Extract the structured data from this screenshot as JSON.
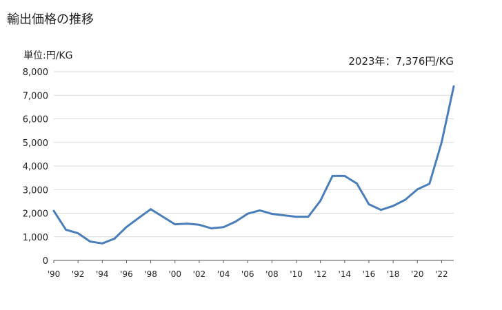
{
  "title": "輸出価格の推移",
  "unit_label": "単位:円/KG",
  "annotation": "2023年：7,376円/KG",
  "colors": {
    "line": "#4a7ebb",
    "grid": "#d9d9d9",
    "axis": "#555555"
  },
  "chart_data": {
    "type": "line",
    "title": "輸出価格の推移",
    "xlabel": "",
    "ylabel": "単位:円/KG",
    "ylim": [
      0,
      8000
    ],
    "yticks": [
      0,
      1000,
      2000,
      3000,
      4000,
      5000,
      6000,
      7000,
      8000
    ],
    "ytick_labels": [
      "0",
      "1,000",
      "2,000",
      "3,000",
      "4,000",
      "5,000",
      "6,000",
      "7,000",
      "8,000"
    ],
    "xticks": [
      1990,
      1992,
      1994,
      1996,
      1998,
      2000,
      2002,
      2004,
      2006,
      2008,
      2010,
      2012,
      2014,
      2016,
      2018,
      2020,
      2022
    ],
    "xtick_labels": [
      "'90",
      "'92",
      "'94",
      "'96",
      "'98",
      "'00",
      "'02",
      "'04",
      "'06",
      "'08",
      "'10",
      "'12",
      "'14",
      "'16",
      "'18",
      "'20",
      "'22"
    ],
    "xlim": [
      1990,
      2023
    ],
    "grid": true,
    "series": [
      {
        "x": [
          1990,
          1991,
          1992,
          1993,
          1994,
          1995,
          1996,
          1997,
          1998,
          1999,
          2000,
          2001,
          2002,
          2003,
          2004,
          2005,
          2006,
          2007,
          2008,
          2009,
          2010,
          2011,
          2012,
          2013,
          2014,
          2015,
          2016,
          2017,
          2018,
          2019,
          2020,
          2021,
          2022,
          2023
        ],
        "values": [
          2100,
          1300,
          1150,
          800,
          720,
          920,
          1420,
          1800,
          2170,
          1850,
          1530,
          1560,
          1510,
          1360,
          1410,
          1640,
          1980,
          2120,
          1970,
          1910,
          1850,
          1850,
          2530,
          3580,
          3580,
          3260,
          2380,
          2140,
          2310,
          2570,
          3010,
          3250,
          5000,
          7376
        ]
      }
    ]
  }
}
